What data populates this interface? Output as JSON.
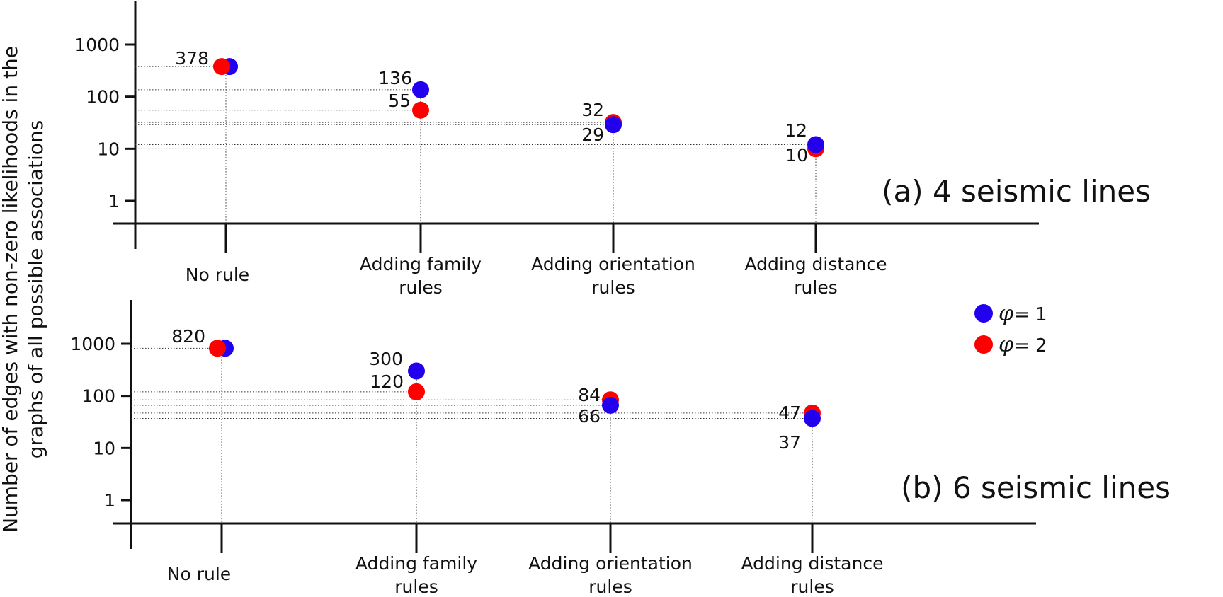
{
  "ylabel": [
    "Number of edges with non-zero likelihoods in the",
    "graphs of all possible associations"
  ],
  "legend": {
    "items": [
      {
        "symbol": "φ",
        "label": "= 1",
        "color": "#2200ee"
      },
      {
        "symbol": "φ",
        "label": "= 2",
        "color": "#ff0000"
      }
    ]
  },
  "chart_data": [
    {
      "type": "scatter",
      "title": "(a) 4 seismic lines",
      "scale": "log",
      "yticks": [
        "1",
        "10",
        "100",
        "1000"
      ],
      "categories": [
        [
          "No rule"
        ],
        [
          "Adding family",
          "rules"
        ],
        [
          "Adding orientation",
          "rules"
        ],
        [
          "Adding distance",
          "rules"
        ]
      ],
      "series": [
        {
          "name": "φ = 1",
          "color": "#2200ee",
          "values": [
            378,
            136,
            29,
            12
          ],
          "labels": [
            "",
            "136",
            "29",
            "12"
          ]
        },
        {
          "name": "φ = 2",
          "color": "#ff0000",
          "values": [
            378,
            55,
            32,
            10
          ],
          "labels": [
            "378",
            "55",
            "32",
            "10"
          ]
        }
      ],
      "grid": "dotted reference lines"
    },
    {
      "type": "scatter",
      "title": "(b) 6 seismic lines",
      "scale": "log",
      "yticks": [
        "1",
        "10",
        "100",
        "1000"
      ],
      "categories": [
        [
          "No rule"
        ],
        [
          "Adding family",
          "rules"
        ],
        [
          "Adding orientation",
          "rules"
        ],
        [
          "Adding distance",
          "rules"
        ]
      ],
      "series": [
        {
          "name": "φ = 1",
          "color": "#2200ee",
          "values": [
            820,
            300,
            66,
            37
          ],
          "labels": [
            "",
            "300",
            "66",
            "37"
          ]
        },
        {
          "name": "φ = 2",
          "color": "#ff0000",
          "values": [
            820,
            120,
            84,
            47
          ],
          "labels": [
            "820",
            "120",
            "84",
            "47"
          ]
        }
      ],
      "grid": "dotted reference lines"
    }
  ]
}
